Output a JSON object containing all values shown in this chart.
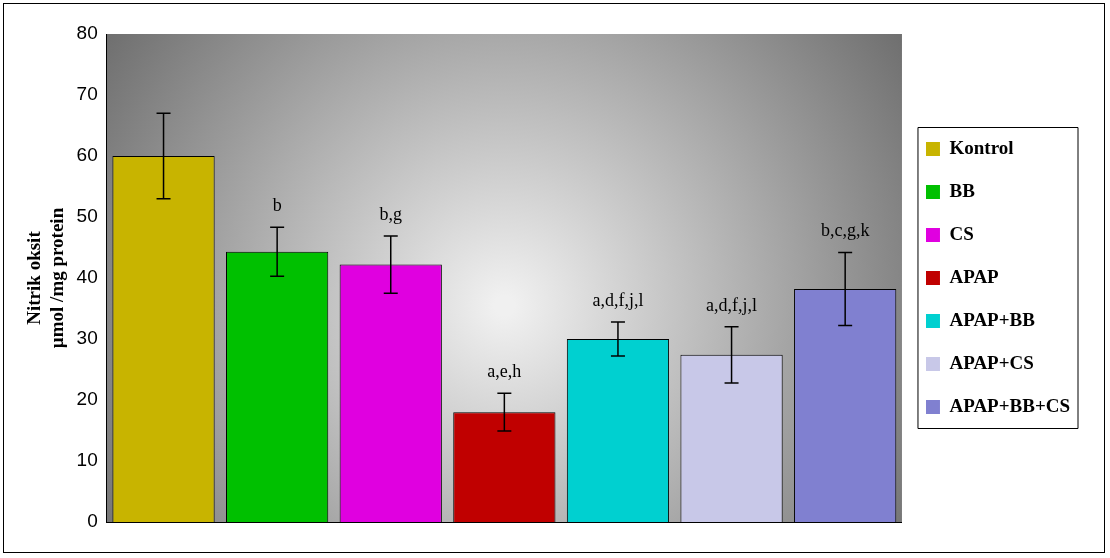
{
  "chart_data": {
    "type": "bar",
    "ylabel": "Nitrik oksit\nµmol /mg protein",
    "categories": [
      null,
      null,
      null,
      null,
      null,
      null,
      null
    ],
    "ylim": [
      0,
      80
    ],
    "yticks": [
      0,
      10,
      20,
      30,
      40,
      50,
      60,
      70,
      80
    ],
    "grid": false,
    "legend": "right",
    "tick_labels": "y",
    "series": [
      {
        "name": "Kontrol",
        "color": "#c8b400",
        "values": [
          60,
          null,
          null,
          null,
          null,
          null,
          null
        ],
        "errors": [
          7,
          null,
          null,
          null,
          null,
          null,
          null
        ],
        "value_labels": [
          null,
          null,
          null,
          null,
          null,
          null,
          null
        ]
      },
      {
        "name": "BB",
        "color": "#00c000",
        "values": [
          null,
          44.3,
          null,
          null,
          null,
          null,
          null
        ],
        "errors": [
          null,
          4,
          null,
          null,
          null,
          null,
          null
        ],
        "value_labels": [
          null,
          "b",
          null,
          null,
          null,
          null,
          null
        ]
      },
      {
        "name": "CS",
        "color": "#e000e0",
        "values": [
          null,
          null,
          42.2,
          null,
          null,
          null,
          null
        ],
        "errors": [
          null,
          null,
          4.7,
          null,
          null,
          null,
          null
        ],
        "value_labels": [
          null,
          null,
          "b,g",
          null,
          null,
          null,
          null
        ]
      },
      {
        "name": "APAP",
        "color": "#c00000",
        "values": [
          null,
          null,
          null,
          18,
          null,
          null,
          null
        ],
        "errors": [
          null,
          null,
          null,
          3.1,
          null,
          null,
          null
        ],
        "value_labels": [
          null,
          null,
          null,
          "a,e,h",
          null,
          null,
          null
        ]
      },
      {
        "name": "APAP+BB",
        "color": "#00d0d0",
        "values": [
          null,
          null,
          null,
          null,
          30,
          null,
          null
        ],
        "errors": [
          null,
          null,
          null,
          null,
          2.8,
          null,
          null
        ],
        "value_labels": [
          null,
          null,
          null,
          null,
          "a,d,f,j,l",
          null,
          null
        ]
      },
      {
        "name": "APAP+CS",
        "color": "#c8c8e8",
        "values": [
          null,
          null,
          null,
          null,
          null,
          27.4,
          null
        ],
        "errors": [
          null,
          null,
          null,
          null,
          null,
          4.6,
          null
        ],
        "value_labels": [
          null,
          null,
          null,
          null,
          null,
          "a,d,f,j,l",
          null
        ]
      },
      {
        "name": "APAP+BB+CS",
        "color": "#8080d0",
        "values": [
          null,
          null,
          null,
          null,
          null,
          null,
          38.2
        ],
        "errors": [
          null,
          null,
          null,
          null,
          null,
          null,
          6
        ],
        "value_labels": [
          null,
          null,
          null,
          null,
          null,
          null,
          "b,c,g,k"
        ]
      }
    ]
  }
}
